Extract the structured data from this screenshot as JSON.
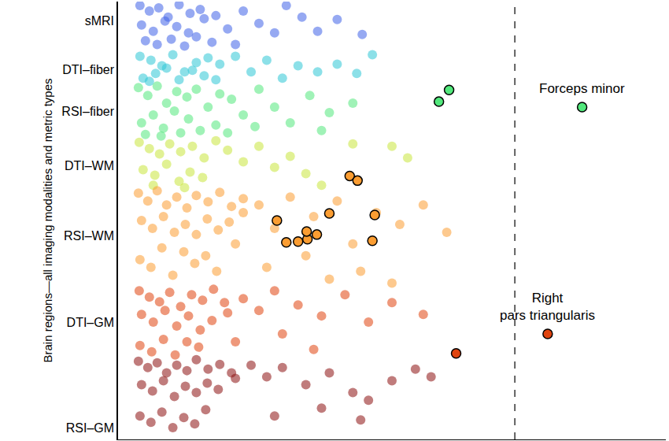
{
  "chart_data": {
    "type": "scatter",
    "ylabel": "Brain regions—all imaging modalities and metric types",
    "xlim": [
      0,
      700
    ],
    "ylim": [
      0,
      560
    ],
    "yticks": [
      {
        "value": 535,
        "label": "sMRI"
      },
      {
        "value": 473,
        "label": "DTI–fiber"
      },
      {
        "value": 420,
        "label": "RSI–fiber"
      },
      {
        "value": 350,
        "label": "DTI–WM"
      },
      {
        "value": 260,
        "label": "RSI–WM"
      },
      {
        "value": 150,
        "label": "DTI–GM"
      },
      {
        "value": 15,
        "label": "RSI–GM"
      }
    ],
    "tick_labels": "y",
    "grid": false,
    "reference_line": 507,
    "series": [
      {
        "color": "#3f62e8",
        "marker": "circle",
        "x": [
          28,
          40,
          52,
          64,
          78,
          92,
          105,
          30,
          45,
          60,
          75,
          90,
          110,
          35,
          50,
          68,
          85,
          100,
          125,
          140,
          160,
          180,
          200,
          215,
          235,
          255,
          280,
          312,
          150,
          120
        ],
        "y": [
          555,
          548,
          552,
          540,
          556,
          545,
          550,
          530,
          522,
          535,
          528,
          520,
          538,
          510,
          505,
          512,
          503,
          515,
          542,
          525,
          548,
          532,
          520,
          555,
          540,
          522,
          537,
          518,
          505,
          508
        ]
      },
      {
        "color": "#2ec6d6",
        "marker": "circle",
        "x": [
          28,
          42,
          56,
          70,
          85,
          100,
          115,
          32,
          48,
          62,
          78,
          95,
          110,
          130,
          150,
          170,
          190,
          210,
          230,
          255,
          280,
          305,
          325,
          40,
          125
        ],
        "y": [
          490,
          485,
          478,
          492,
          470,
          482,
          488,
          462,
          468,
          475,
          460,
          472,
          465,
          480,
          490,
          470,
          485,
          462,
          478,
          470,
          480,
          468,
          492,
          458,
          460
        ]
      },
      {
        "color": "#52e87c",
        "marker": "circle",
        "x": [
          26,
          38,
          50,
          62,
          75,
          88,
          100,
          115,
          130,
          30,
          45,
          58,
          72,
          90,
          105,
          125,
          145,
          160,
          180,
          200,
          220,
          245,
          270,
          300,
          35,
          55,
          80,
          140,
          175,
          260
        ],
        "y": [
          450,
          440,
          452,
          430,
          445,
          438,
          448,
          425,
          442,
          405,
          415,
          398,
          420,
          410,
          395,
          402,
          435,
          415,
          448,
          425,
          405,
          440,
          418,
          430,
          390,
          388,
          392,
          392,
          400,
          395
        ]
      },
      {
        "color": "#c9e63c",
        "marker": "circle",
        "x": [
          27,
          40,
          53,
          66,
          80,
          95,
          110,
          125,
          32,
          47,
          62,
          78,
          92,
          108,
          140,
          160,
          180,
          200,
          220,
          240,
          260,
          300,
          350,
          370,
          45,
          85
        ],
        "y": [
          380,
          372,
          365,
          378,
          368,
          375,
          360,
          382,
          345,
          338,
          352,
          330,
          342,
          335,
          370,
          355,
          375,
          348,
          362,
          340,
          325,
          378,
          375,
          360,
          325,
          322
        ]
      },
      {
        "color": "#fb9d32",
        "marker": "circle",
        "x": [
          26,
          38,
          50,
          62,
          75,
          88,
          100,
          115,
          130,
          145,
          160,
          30,
          44,
          58,
          72,
          86,
          100,
          114,
          128,
          142,
          160,
          28,
          42,
          56,
          70,
          84,
          98,
          112,
          126,
          150,
          180,
          200,
          220,
          250,
          280,
          300,
          330,
          360,
          390,
          420,
          190,
          240,
          270,
          310,
          350
        ],
        "y": [
          315,
          305,
          318,
          300,
          310,
          296,
          312,
          304,
          316,
          298,
          308,
          280,
          270,
          285,
          265,
          275,
          262,
          282,
          268,
          278,
          290,
          230,
          220,
          245,
          210,
          240,
          225,
          235,
          215,
          250,
          300,
          270,
          310,
          285,
          305,
          250,
          290,
          275,
          300,
          265,
          220,
          235,
          205,
          215,
          200
        ]
      },
      {
        "color": "#e0440f",
        "marker": "circle",
        "x": [
          27,
          40,
          53,
          66,
          80,
          94,
          108,
          122,
          136,
          30,
          45,
          60,
          75,
          90,
          105,
          120,
          140,
          28,
          43,
          58,
          73,
          88,
          103,
          160,
          180,
          200,
          230,
          260,
          290,
          320,
          350,
          390,
          150,
          210,
          250
        ],
        "y": [
          190,
          182,
          176,
          188,
          170,
          185,
          178,
          192,
          175,
          160,
          150,
          165,
          145,
          158,
          140,
          152,
          162,
          120,
          112,
          128,
          108,
          125,
          118,
          180,
          165,
          190,
          172,
          158,
          185,
          150,
          175,
          160,
          125,
          135,
          115
        ]
      },
      {
        "color": "#8c1111",
        "marker": "circle",
        "x": [
          26,
          38,
          50,
          62,
          75,
          88,
          100,
          115,
          130,
          145,
          30,
          44,
          58,
          72,
          86,
          100,
          114,
          128,
          150,
          28,
          42,
          56,
          70,
          84,
          98,
          112,
          170,
          190,
          210,
          240,
          270,
          300,
          320,
          350,
          380,
          400,
          200,
          260,
          310
        ],
        "y": [
          100,
          92,
          98,
          85,
          95,
          88,
          102,
          90,
          96,
          85,
          70,
          62,
          75,
          55,
          68,
          60,
          72,
          64,
          78,
          30,
          22,
          35,
          15,
          28,
          20,
          38,
          95,
          80,
          92,
          70,
          85,
          60,
          50,
          75,
          90,
          80,
          30,
          40,
          25
        ]
      },
      {
        "color": "#52e87c",
        "marker": "circle-outlined",
        "x": [
          423,
          410,
          593
        ],
        "y": [
          447,
          432,
          425
        ]
      },
      {
        "color": "#fb9d32",
        "marker": "circle-outlined",
        "x": [
          215,
          230,
          242,
          254,
          203,
          241,
          270,
          325,
          328,
          296,
          306
        ],
        "y": [
          252,
          253,
          256,
          262,
          280,
          266,
          289,
          254,
          287,
          337,
          331
        ]
      },
      {
        "color": "#e0440f",
        "marker": "circle-outlined",
        "x": [
          432,
          549
        ],
        "y": [
          110,
          135
        ]
      }
    ],
    "annotations": [
      {
        "text": "Forceps minor",
        "x": 593,
        "y": 425
      },
      {
        "text": "Right\npars triangularis",
        "x": 549,
        "y": 135
      }
    ]
  }
}
